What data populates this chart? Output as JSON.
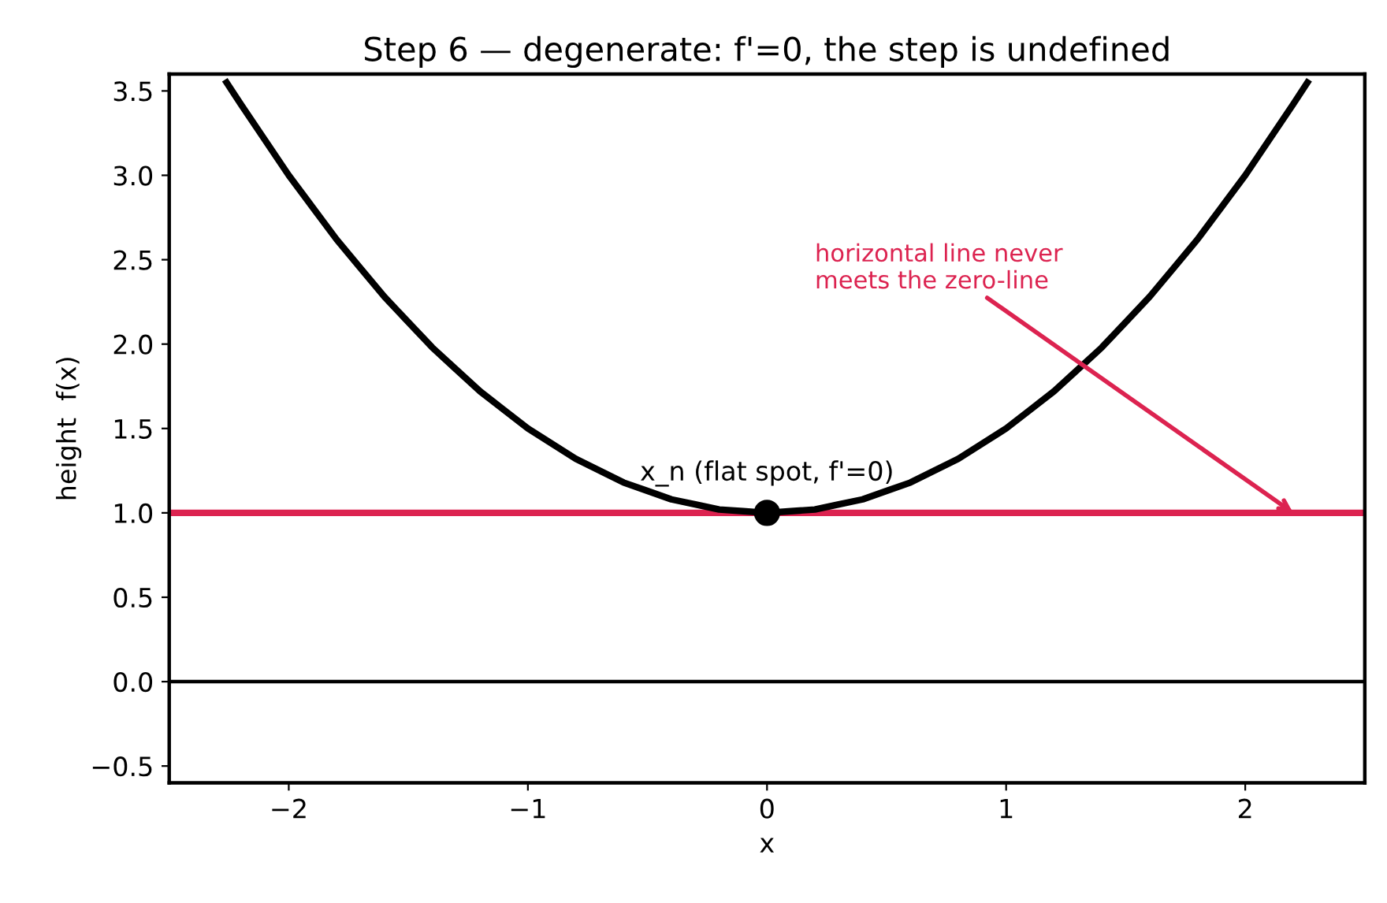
{
  "chart_data": {
    "type": "line",
    "title": "Step 6 — degenerate: f'=0, the step is undefined",
    "xlabel": "x",
    "ylabel": "height  f(x)",
    "series": [
      {
        "color": "#000000",
        "x": [
          -2.26,
          -2.2,
          -2.1,
          -2.0,
          -1.9,
          -1.8,
          -1.7,
          -1.6,
          -1.5,
          -1.4,
          -1.3,
          -1.2,
          -1.1,
          -1.0,
          -0.9,
          -0.8,
          -0.7,
          -0.6,
          -0.5,
          -0.4,
          -0.3,
          -0.2,
          -0.1,
          0.0,
          0.1,
          0.2,
          0.3,
          0.4,
          0.5,
          0.6,
          0.7,
          0.8,
          0.9,
          1.0,
          1.1,
          1.2,
          1.3,
          1.4,
          1.5,
          1.6,
          1.7,
          1.8,
          1.9,
          2.0,
          2.1,
          2.2,
          2.26
        ],
        "values": [
          3.55,
          3.42,
          3.21,
          3.0,
          2.81,
          2.62,
          2.45,
          2.28,
          2.13,
          1.98,
          1.85,
          1.72,
          1.61,
          1.5,
          1.41,
          1.32,
          1.25,
          1.18,
          1.13,
          1.08,
          1.05,
          1.02,
          1.01,
          1.0,
          1.01,
          1.02,
          1.05,
          1.08,
          1.13,
          1.18,
          1.25,
          1.32,
          1.41,
          1.5,
          1.61,
          1.72,
          1.85,
          1.98,
          2.13,
          2.28,
          2.45,
          2.62,
          2.81,
          3.0,
          3.21,
          3.42,
          3.55
        ]
      },
      {
        "type": "scatter",
        "color": "#000000",
        "marker": "circle",
        "x": [
          0.0
        ],
        "values": [
          1.0
        ]
      }
    ],
    "ref_lines": [
      {
        "axis": "y",
        "value": 1.0,
        "color": "#dc2350"
      },
      {
        "axis": "y",
        "value": 0.0,
        "color": "#000000"
      }
    ],
    "annotations": [
      {
        "text": "x_n (flat spot, f'=0)",
        "x": 0.0,
        "y": 1.0
      },
      {
        "text": "horizontal line never\nmeets the zero-line",
        "x": 2.2,
        "y": 1.0
      }
    ],
    "xlim": [
      -2.5,
      2.5
    ],
    "xticks": [
      {
        "value": -2,
        "label": "−2"
      },
      {
        "value": -1,
        "label": "−1"
      },
      0,
      1,
      2
    ],
    "ylim": [
      -0.6,
      3.6
    ],
    "yticks": [
      {
        "value": -0.5,
        "label": "−0.5"
      },
      {
        "value": 0.0,
        "label": "0.0"
      },
      {
        "value": 0.5,
        "label": "0.5"
      },
      {
        "value": 1.0,
        "label": "1.0"
      },
      {
        "value": 1.5,
        "label": "1.5"
      },
      {
        "value": 2.0,
        "label": "2.0"
      },
      {
        "value": 2.5,
        "label": "2.5"
      },
      {
        "value": 3.0,
        "label": "3.0"
      },
      {
        "value": 3.5,
        "label": "3.5"
      }
    ],
    "grid": false,
    "legend": false
  }
}
